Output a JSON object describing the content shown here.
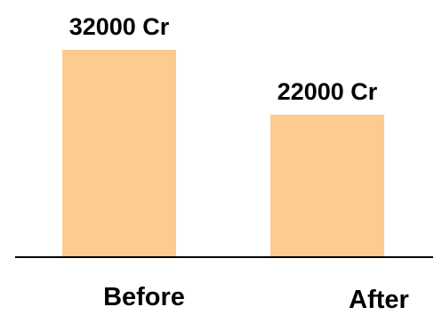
{
  "chart_data": {
    "type": "bar",
    "categories": [
      "Before",
      "After"
    ],
    "values": [
      32000,
      22000
    ],
    "data_labels": [
      "32000 Cr",
      "22000 Cr"
    ],
    "ylim": [
      0,
      36000
    ],
    "grid": false,
    "bar_color": "#fdca90",
    "axis_color": "#000000"
  }
}
